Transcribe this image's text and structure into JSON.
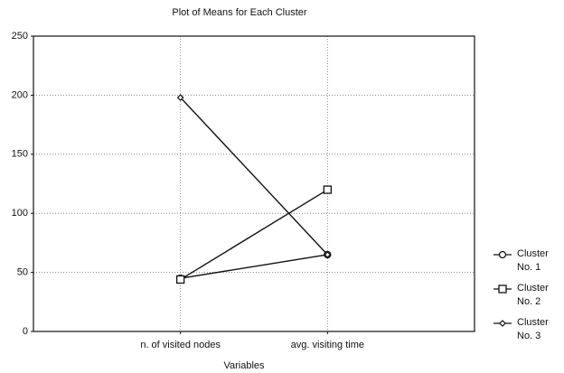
{
  "chart_data": {
    "type": "line",
    "title": "Plot of Means for Each Cluster",
    "x_label": "Variables",
    "categories": [
      "n. of visited nodes",
      "avg. visiting time"
    ],
    "series": [
      {
        "name": "Cluster No. 1",
        "color": "#111111",
        "marker": "circle",
        "values": [
          45,
          65
        ]
      },
      {
        "name": "Cluster No. 2",
        "color": "#111111",
        "marker": "square",
        "values": [
          44,
          120
        ]
      },
      {
        "name": "Cluster No. 3",
        "color": "#111111",
        "marker": "diamond",
        "values": [
          198,
          65
        ]
      }
    ],
    "ylim": [
      0,
      250
    ],
    "yticks": [
      0,
      50,
      100,
      150,
      200,
      250
    ],
    "grid": true,
    "legend": "right"
  }
}
